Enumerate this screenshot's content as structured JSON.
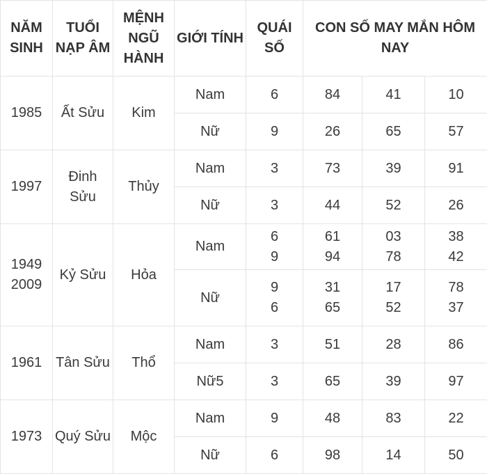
{
  "headers": {
    "nam_sinh": "NĂM SINH",
    "tuoi": "TUỔI NẠP ÂM",
    "menh": "MỆNH NGŨ HÀNH",
    "gioi_tinh": "GIỚI TÍNH",
    "quai": "QUÁI SỐ",
    "con_so": "CON SỐ MAY MẮN HÔM NAY"
  },
  "groups": [
    {
      "year": [
        "1985"
      ],
      "tuoi": [
        "Ất Sửu"
      ],
      "menh": "Kim",
      "rows": [
        {
          "gender": "Nam",
          "quai": [
            "6"
          ],
          "n1": [
            "84"
          ],
          "n2": [
            "41"
          ],
          "n3": [
            "10"
          ]
        },
        {
          "gender": "Nữ",
          "quai": [
            "9"
          ],
          "n1": [
            "26"
          ],
          "n2": [
            "65"
          ],
          "n3": [
            "57"
          ]
        }
      ]
    },
    {
      "year": [
        "1997"
      ],
      "tuoi": [
        "Đinh",
        "Sửu"
      ],
      "menh": "Thủy",
      "rows": [
        {
          "gender": "Nam",
          "quai": [
            "3"
          ],
          "n1": [
            "73"
          ],
          "n2": [
            "39"
          ],
          "n3": [
            "91"
          ]
        },
        {
          "gender": "Nữ",
          "quai": [
            "3"
          ],
          "n1": [
            "44"
          ],
          "n2": [
            "52"
          ],
          "n3": [
            "26"
          ]
        }
      ]
    },
    {
      "year": [
        "1949",
        "2009"
      ],
      "tuoi": [
        "Kỷ Sửu"
      ],
      "menh": "Hỏa",
      "rows": [
        {
          "gender": "Nam",
          "quai": [
            "6",
            "9"
          ],
          "n1": [
            "61",
            "94"
          ],
          "n2": [
            "03",
            "78"
          ],
          "n3": [
            "38",
            "42"
          ]
        },
        {
          "gender": "Nữ",
          "quai": [
            "9",
            "6"
          ],
          "n1": [
            "31",
            "65"
          ],
          "n2": [
            "17",
            "52"
          ],
          "n3": [
            "78",
            "37"
          ]
        }
      ]
    },
    {
      "year": [
        "1961"
      ],
      "tuoi": [
        "Tân Sửu"
      ],
      "menh": "Thổ",
      "rows": [
        {
          "gender": "Nam",
          "quai": [
            "3"
          ],
          "n1": [
            "51"
          ],
          "n2": [
            "28"
          ],
          "n3": [
            "86"
          ]
        },
        {
          "gender": "Nữ5",
          "quai": [
            "3"
          ],
          "n1": [
            "65"
          ],
          "n2": [
            "39"
          ],
          "n3": [
            "97"
          ]
        }
      ]
    },
    {
      "year": [
        "1973"
      ],
      "tuoi": [
        "Quý Sửu"
      ],
      "menh": "Mộc",
      "rows": [
        {
          "gender": "Nam",
          "quai": [
            "9"
          ],
          "n1": [
            "48"
          ],
          "n2": [
            "83"
          ],
          "n3": [
            "22"
          ]
        },
        {
          "gender": "Nữ",
          "quai": [
            "6"
          ],
          "n1": [
            "98"
          ],
          "n2": [
            "14"
          ],
          "n3": [
            "50"
          ]
        }
      ]
    }
  ]
}
